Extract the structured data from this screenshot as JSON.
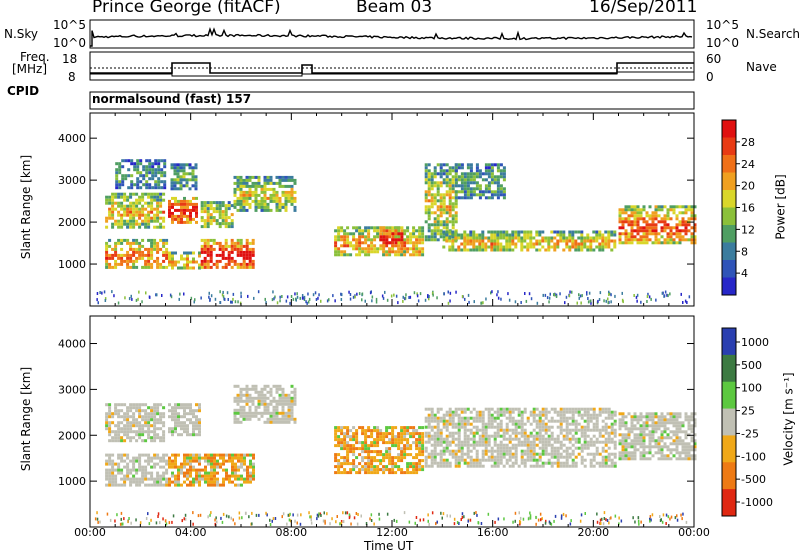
{
  "header": {
    "station": "Prince George (fitACF)",
    "beam": "Beam 03",
    "date": "16/Sep/2011"
  },
  "top_panel": {
    "nsky_label": "N.Sky",
    "nsky_ticks": [
      "10^5",
      "10^0"
    ],
    "nsearch_label": "N.Search",
    "nsearch_ticks": [
      "10^5",
      "10^0"
    ],
    "freq_label_1": "Freq.",
    "freq_label_2": "[MHz]",
    "freq_ticks": [
      "18",
      "8"
    ],
    "nave_label": "Nave",
    "nave_ticks": [
      "60",
      "0"
    ],
    "cpid_label": "CPID",
    "cpid_text": "normalsound (fast) 157"
  },
  "colors": {
    "power_scale": [
      "#2727c8",
      "#2f54b8",
      "#3b7c9e",
      "#4f9e62",
      "#8bc03a",
      "#d9d62a",
      "#f0a020",
      "#f07018",
      "#e83a14",
      "#e01010"
    ],
    "velocity_scale": [
      "#2a3fb0",
      "#3c7a42",
      "#5cc840",
      "#c0c0b4",
      "#f0a818",
      "#ee7a14",
      "#e02812"
    ],
    "line": "#000000"
  },
  "chart_data": [
    {
      "type": "heatmap",
      "name": "power",
      "xlabel": "",
      "ylabel": "Slant Range [km]",
      "yticks": [
        "1000",
        "2000",
        "3000",
        "4000"
      ],
      "ylim": [
        0,
        4600
      ],
      "xlim": [
        0,
        24
      ],
      "colorbar": {
        "label": "Power [dB]",
        "ticks": [
          "28",
          "24",
          "20",
          "16",
          "12",
          "8",
          "4"
        ],
        "range": [
          0,
          32
        ]
      },
      "echo_regions": [
        {
          "t0": 0.6,
          "t1": 3.0,
          "r0": 900,
          "r1": 1600,
          "level": 0.6
        },
        {
          "t0": 0.6,
          "t1": 2.9,
          "r0": 1900,
          "r1": 2700,
          "level": 0.5
        },
        {
          "t0": 1.0,
          "t1": 3.0,
          "r0": 2800,
          "r1": 3500,
          "level": 0.25
        },
        {
          "t0": 3.1,
          "t1": 4.2,
          "r0": 2000,
          "r1": 2600,
          "level": 0.75
        },
        {
          "t0": 3.2,
          "t1": 4.2,
          "r0": 2800,
          "r1": 3400,
          "level": 0.3
        },
        {
          "t0": 3.1,
          "t1": 4.4,
          "r0": 900,
          "r1": 1300,
          "level": 0.55
        },
        {
          "t0": 4.4,
          "t1": 6.5,
          "r0": 900,
          "r1": 1600,
          "level": 0.8
        },
        {
          "t0": 4.4,
          "t1": 5.6,
          "r0": 1900,
          "r1": 2500,
          "level": 0.45
        },
        {
          "t0": 5.7,
          "t1": 8.1,
          "r0": 2300,
          "r1": 3100,
          "level": 0.45
        },
        {
          "t0": 9.7,
          "t1": 13.2,
          "r0": 1200,
          "r1": 1900,
          "level": 0.55
        },
        {
          "t0": 11.5,
          "t1": 12.4,
          "r0": 1400,
          "r1": 1900,
          "level": 0.8
        },
        {
          "t0": 13.3,
          "t1": 14.5,
          "r0": 1600,
          "r1": 3400,
          "level": 0.45
        },
        {
          "t0": 14.0,
          "t1": 20.9,
          "r0": 1300,
          "r1": 1800,
          "level": 0.5
        },
        {
          "t0": 14.5,
          "t1": 16.5,
          "r0": 2600,
          "r1": 3400,
          "level": 0.3
        },
        {
          "t0": 21.0,
          "t1": 24.0,
          "r0": 1500,
          "r1": 2400,
          "level": 0.65
        }
      ]
    },
    {
      "type": "heatmap",
      "name": "velocity",
      "xlabel": "Time UT",
      "ylabel": "Slant Range [km]",
      "xticks": [
        "00:00",
        "04:00",
        "08:00",
        "12:00",
        "16:00",
        "20:00",
        "00:00"
      ],
      "yticks": [
        "1000",
        "2000",
        "3000",
        "4000"
      ],
      "ylim": [
        0,
        4600
      ],
      "xlim": [
        0,
        24
      ],
      "colorbar": {
        "label": "Velocity [m s⁻¹]",
        "ticks": [
          "1000",
          "500",
          "100",
          "25",
          "-25",
          "-100",
          "-500",
          "-1000"
        ]
      },
      "echo_regions": [
        {
          "t0": 0.6,
          "t1": 3.0,
          "r0": 900,
          "r1": 1600,
          "class": "gray"
        },
        {
          "t0": 0.6,
          "t1": 2.9,
          "r0": 1900,
          "r1": 2700,
          "class": "gray"
        },
        {
          "t0": 3.1,
          "t1": 6.5,
          "r0": 900,
          "r1": 1600,
          "class": "orange"
        },
        {
          "t0": 3.1,
          "t1": 4.4,
          "r0": 2000,
          "r1": 2700,
          "class": "gray"
        },
        {
          "t0": 5.7,
          "t1": 8.1,
          "r0": 2300,
          "r1": 3100,
          "class": "gray"
        },
        {
          "t0": 9.7,
          "t1": 13.2,
          "r0": 1200,
          "r1": 2200,
          "class": "orange"
        },
        {
          "t0": 13.3,
          "t1": 20.9,
          "r0": 1300,
          "r1": 2600,
          "class": "gray"
        },
        {
          "t0": 21.0,
          "t1": 24.0,
          "r0": 1500,
          "r1": 2500,
          "class": "gray"
        }
      ]
    }
  ]
}
